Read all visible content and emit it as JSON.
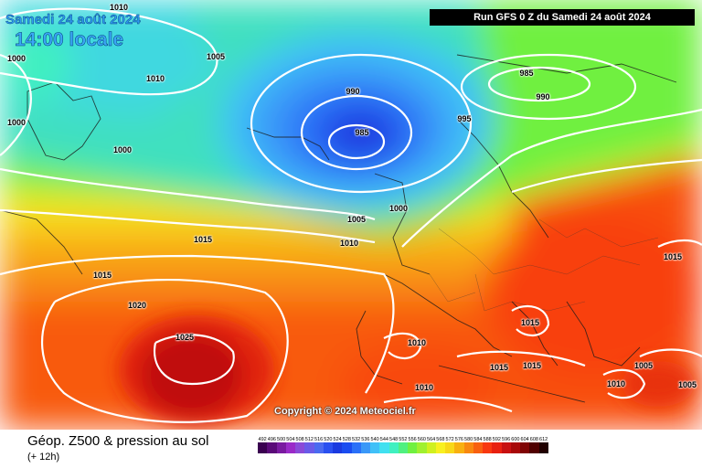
{
  "header": {
    "date": "Samedi 24 août 2024",
    "time": "14:00 locale",
    "run": "Run GFS 0 Z du Samedi 24 août 2024"
  },
  "copyright": "Copyright © 2024 Meteociel.fr",
  "footer": {
    "parameter": "Géop. Z500 & pression au sol",
    "lead": "(+ 12h)"
  },
  "isobars": [
    {
      "value": "1010"
    },
    {
      "value": "1000"
    },
    {
      "value": "1005"
    },
    {
      "value": "1010"
    },
    {
      "value": "1000"
    },
    {
      "value": "1000"
    },
    {
      "value": "990"
    },
    {
      "value": "985"
    },
    {
      "value": "995"
    },
    {
      "value": "985"
    },
    {
      "value": "990"
    },
    {
      "value": "1015"
    },
    {
      "value": "1005"
    },
    {
      "value": "1000"
    },
    {
      "value": "1010"
    },
    {
      "value": "1015"
    },
    {
      "value": "1020"
    },
    {
      "value": "1025"
    },
    {
      "value": "1010"
    },
    {
      "value": "1015"
    },
    {
      "value": "1015"
    },
    {
      "value": "1015"
    },
    {
      "value": "1015"
    },
    {
      "value": "1010"
    },
    {
      "value": "1005"
    },
    {
      "value": "1010"
    },
    {
      "value": "1005"
    }
  ],
  "scale": {
    "labels": [
      "492",
      "496",
      "500",
      "504",
      "508",
      "512",
      "516",
      "520",
      "524",
      "528",
      "532",
      "536",
      "540",
      "544",
      "548",
      "552",
      "556",
      "560",
      "564",
      "568",
      "572",
      "576",
      "580",
      "584",
      "588",
      "592",
      "596",
      "600",
      "604",
      "608",
      "612"
    ],
    "colors": [
      "#3a0050",
      "#5a0a78",
      "#7a1aa0",
      "#9a2ac8",
      "#8a4ad8",
      "#6a5ae8",
      "#4a6af0",
      "#2a50f0",
      "#1a3ae0",
      "#1a4cf0",
      "#2a70f8",
      "#3a98f8",
      "#40c0f8",
      "#40e0f0",
      "#40f0c0",
      "#50f080",
      "#70f040",
      "#a0f030",
      "#d0f020",
      "#f8f020",
      "#f8d818",
      "#f8b010",
      "#f88810",
      "#f86010",
      "#f83810",
      "#e82010",
      "#c81010",
      "#a80808",
      "#800404",
      "#500000",
      "#200000"
    ]
  }
}
